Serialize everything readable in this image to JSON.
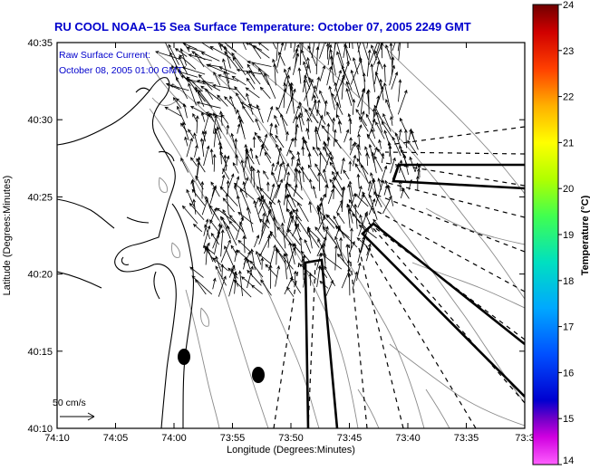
{
  "title": "RU COOL  NOAA–15  Sea Surface Temperature:  October 07, 2005 2249 GMT",
  "subtitle_line1": "Raw Surface Current:",
  "subtitle_line2": "October 08, 2005 01:00 GMT",
  "axes": {
    "xlabel": "Longitude (Degrees:Minutes)",
    "ylabel": "Latitude (Degrees:Minutes)",
    "xticks": [
      "74:10",
      "74:05",
      "74:00",
      "73:55",
      "73:50",
      "73:45",
      "73:40",
      "73:35",
      "73:3"
    ],
    "yticks": [
      "40:35",
      "40:30",
      "40:25",
      "40:20",
      "40:15",
      "40:10"
    ]
  },
  "colorbar": {
    "label": "Temperature (°C)",
    "ticks": [
      "24",
      "23",
      "22",
      "21",
      "20",
      "19",
      "18",
      "17",
      "16",
      "15",
      "14"
    ],
    "colors": [
      "#7a0000",
      "#c00000",
      "#ff2000",
      "#ff8000",
      "#ffd000",
      "#c8ff00",
      "#40ff40",
      "#00e0b0",
      "#00b0ff",
      "#0050ff",
      "#0000c8",
      "#6000c0",
      "#c000e0",
      "#ff40ff"
    ]
  },
  "scale_label": "50 cm/s",
  "colors": {
    "title": "#0000cc",
    "land": "#ffffff",
    "frame": "#000000"
  }
}
